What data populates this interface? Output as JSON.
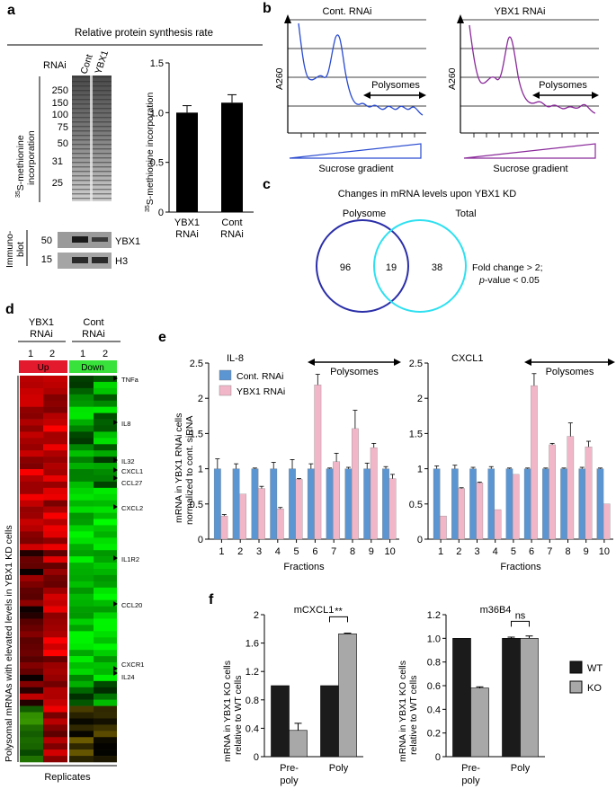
{
  "panel_a": {
    "label": "a",
    "title": "Relative protein synthesis rate",
    "rnai_label": "RNAi",
    "lanes": [
      "Cont",
      "YBX1"
    ],
    "mw_markers": [
      "250",
      "150",
      "100",
      "75",
      "50",
      "31",
      "25"
    ],
    "ylabel_gel_pre": "35",
    "ylabel_gel": "S-methionine",
    "ylabel_gel2": "incorporation",
    "immunoblot_label": "Immuno-",
    "immunoblot_label2": "blot",
    "blot_markers": [
      "50",
      "15"
    ],
    "blot_labels": [
      "YBX1",
      "H3"
    ],
    "bar_ylabel_pre": "35",
    "bar_ylabel": "S-methionine incorporation"
  },
  "panel_b": {
    "label": "b",
    "left_title": "Cont. RNAi",
    "right_title": "YBX1 RNAi",
    "ylabel": "A260",
    "polysomes": "Polysomes",
    "gradient": "Sucrose gradient",
    "colors": {
      "cont": "#2a4bd0",
      "ybx1": "#8a2a9a"
    }
  },
  "panel_c": {
    "label": "c",
    "title": "Changes in mRNA levels upon YBX1 KD",
    "circle_left": "Polysome",
    "circle_right": "Total",
    "left_only": "96",
    "overlap": "19",
    "right_only": "38",
    "note1": "Fold change > 2;",
    "note2_p": "p",
    "note2": "-value < 0.05",
    "colors": {
      "left": "#2b2fa8",
      "right": "#2fe0f0"
    }
  },
  "panel_d": {
    "label": "d",
    "group1": "YBX1",
    "group1b": "RNAi",
    "group2": "Cont",
    "group2b": "RNAi",
    "replicates": [
      "1",
      "2",
      "1",
      "2"
    ],
    "up": "Up",
    "down": "Down",
    "ylabel": "Polysomal mRNAs with elevated levels in YBX1 KD cells",
    "xlabel": "Replicates",
    "genes": [
      "TNFa",
      "IL8",
      "IL32",
      "CXCL1",
      "CCL27",
      "CXCL2",
      "IL1R2",
      "CCL20",
      "CXCR1",
      "IL24"
    ]
  },
  "panel_e": {
    "label": "e",
    "ylabel1": "mRNA in YBX1 RNAi cells",
    "ylabel2": "normalized to cont. siRNA",
    "xlabel": "Fractions",
    "polysomes": "Polysomes",
    "legend": [
      "Cont. RNAi",
      "YBX1 RNAi"
    ]
  },
  "panel_f": {
    "label": "f",
    "ylabel1": "mRNA in YBX1 KO cells",
    "ylabel2": "relative to WT cells",
    "legend": [
      "WT",
      "KO"
    ],
    "sig_left": "**",
    "sig_right": "ns",
    "xcat_line1": [
      "Pre-",
      "Poly"
    ],
    "xcat_line2": [
      "poly",
      ""
    ]
  },
  "chart_data": [
    {
      "id": "a_bar",
      "type": "bar",
      "title": "",
      "categories": [
        "YBX1 RNAi",
        "Cont RNAi"
      ],
      "values": [
        1.0,
        1.1
      ],
      "errors": [
        0.07,
        0.08
      ],
      "ylabel": "35S-methionine incorporation",
      "ylim": [
        0,
        1.5
      ],
      "yticks": [
        "0",
        "0.5",
        "1.0",
        "1.5"
      ],
      "colors": [
        "#000000"
      ]
    },
    {
      "id": "e_il8",
      "type": "bar",
      "title": "IL-8",
      "categories": [
        "1",
        "2",
        "3",
        "4",
        "5",
        "6",
        "7",
        "8",
        "9",
        "10"
      ],
      "series": [
        {
          "name": "Cont. RNAi",
          "values": [
            1.0,
            1.0,
            1.0,
            1.0,
            1.0,
            1.0,
            1.0,
            1.0,
            1.0,
            1.0
          ],
          "errors": [
            0.14,
            0.07,
            0.01,
            0.09,
            0.13,
            0.07,
            0.01,
            0.02,
            0.08,
            0.03
          ],
          "color": "#5b95d2"
        },
        {
          "name": "YBX1 RNAi",
          "values": [
            0.33,
            0.64,
            0.72,
            0.43,
            0.85,
            2.19,
            1.1,
            1.57,
            1.3,
            0.86
          ],
          "errors": [
            0.02,
            0.0,
            0.03,
            0.02,
            0.01,
            0.15,
            0.12,
            0.26,
            0.06,
            0.06
          ],
          "color": "#f1b7c9"
        }
      ],
      "xlabel": "Fractions",
      "ylim": [
        0,
        2.5
      ],
      "yticks": [
        "0",
        "0.5",
        "1",
        "1.5",
        "2",
        "2.5"
      ]
    },
    {
      "id": "e_cxcl1",
      "type": "bar",
      "title": "CXCL1",
      "categories": [
        "1",
        "2",
        "3",
        "4",
        "5",
        "6",
        "7",
        "8",
        "9",
        "10"
      ],
      "series": [
        {
          "name": "Cont. RNAi",
          "values": [
            1.0,
            1.0,
            1.0,
            1.0,
            1.0,
            1.0,
            1.0,
            1.0,
            1.0,
            1.0
          ],
          "errors": [
            0.04,
            0.05,
            0.02,
            0.03,
            0.01,
            0.01,
            0.01,
            0.01,
            0.02,
            0.01
          ],
          "color": "#5b95d2"
        },
        {
          "name": "YBX1 RNAi",
          "values": [
            0.33,
            0.72,
            0.8,
            0.42,
            0.92,
            2.18,
            1.34,
            1.46,
            1.31,
            0.5
          ],
          "errors": [
            0.0,
            0.01,
            0.01,
            0.0,
            0.0,
            0.17,
            0.02,
            0.19,
            0.08,
            0.0
          ],
          "color": "#f1b7c9"
        }
      ],
      "xlabel": "Fractions",
      "ylim": [
        0,
        2.5
      ],
      "yticks": [
        "0",
        "0.5",
        "1",
        "1.5",
        "2",
        "2.5"
      ]
    },
    {
      "id": "f_mcxcl1",
      "type": "bar",
      "title": "mCXCL1",
      "categories": [
        "Pre-poly",
        "Poly"
      ],
      "series": [
        {
          "name": "WT",
          "values": [
            1.0,
            1.0
          ],
          "errors": [
            0.0,
            0.0
          ],
          "color": "#1b1b1b"
        },
        {
          "name": "KO",
          "values": [
            0.37,
            1.73
          ],
          "errors": [
            0.1,
            0.01
          ],
          "color": "#a8a8a8"
        }
      ],
      "ylim": [
        0,
        2.0
      ],
      "yticks": [
        "0",
        "0.4",
        "0.8",
        "1.2",
        "1.6",
        "2"
      ]
    },
    {
      "id": "f_m36b4",
      "type": "bar",
      "title": "m36B4",
      "categories": [
        "Pre-poly",
        "Poly"
      ],
      "series": [
        {
          "name": "WT",
          "values": [
            1.0,
            1.0
          ],
          "errors": [
            0.0,
            0.01
          ],
          "color": "#1b1b1b"
        },
        {
          "name": "KO",
          "values": [
            0.58,
            1.0
          ],
          "errors": [
            0.01,
            0.02
          ],
          "color": "#a8a8a8"
        }
      ],
      "ylim": [
        0,
        1.2
      ],
      "yticks": [
        "0",
        "0.2",
        "0.4",
        "0.6",
        "0.8",
        "1.0",
        "1.2"
      ]
    }
  ]
}
